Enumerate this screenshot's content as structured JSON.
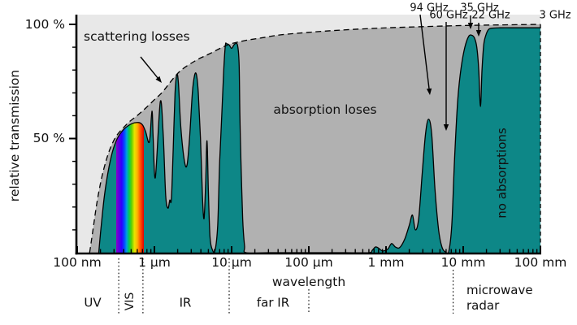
{
  "y_axis": {
    "label": "relative transmission",
    "tick_labels": [
      "100 %",
      "50 %"
    ]
  },
  "x_axis": {
    "title": "wavelength",
    "tick_labels": [
      "100 nm",
      "1 µm",
      "10 µm",
      "100 µm",
      "1 mm",
      "10 mm",
      "100 mm"
    ]
  },
  "annotations": {
    "scattering": "scattering losses",
    "absorption": "absorption loses",
    "no_absorption": "no absorptions",
    "ghz_labels": [
      "94 GHz",
      "60 GHz",
      "35 GHz",
      "22 GHz",
      "3 GHz"
    ]
  },
  "bands": [
    "UV",
    "VIS",
    "IR",
    "far IR",
    "microwave",
    "radar"
  ],
  "colors": {
    "window_fill": "#0d8787",
    "outline": "#000000",
    "scatter_region": "#e8e8e8",
    "absorption_region": "#b1b1b1",
    "spectrum_stops": [
      [
        0,
        "#8a00c8"
      ],
      [
        10,
        "#5500e6"
      ],
      [
        20,
        "#2d00ff"
      ],
      [
        30,
        "#0050ff"
      ],
      [
        38,
        "#00a0e0"
      ],
      [
        46,
        "#00c85a"
      ],
      [
        56,
        "#64d200"
      ],
      [
        66,
        "#e6e600"
      ],
      [
        76,
        "#ffb400"
      ],
      [
        88,
        "#ff5000"
      ],
      [
        100,
        "#e60000"
      ]
    ]
  },
  "chart_data": {
    "type": "area",
    "x_scale": "log",
    "x_unit": "µm",
    "x_range_um": [
      0.1,
      100000
    ],
    "y_label": "relative transmission",
    "y_unit": "%",
    "y_range_pct": [
      0,
      100
    ],
    "grid": false,
    "legend": false,
    "visible_spectrum_um": [
      0.32,
      0.73
    ],
    "band_boundaries_um": [
      0.345,
      0.71,
      9.3,
      100,
      7400
    ],
    "series": [
      {
        "name": "atmospheric transmission windows",
        "style": "filled-teal",
        "points_um_pct": [
          [
            0.19,
            0
          ],
          [
            0.205,
            12
          ],
          [
            0.225,
            25
          ],
          [
            0.25,
            35
          ],
          [
            0.285,
            44
          ],
          [
            0.33,
            50
          ],
          [
            0.4,
            54
          ],
          [
            0.51,
            56.5
          ],
          [
            0.62,
            57
          ],
          [
            0.7,
            56
          ],
          [
            0.77,
            53
          ],
          [
            0.86,
            48.5
          ],
          [
            0.93,
            62
          ],
          [
            0.965,
            50
          ],
          [
            1.03,
            33
          ],
          [
            1.19,
            66
          ],
          [
            1.3,
            52
          ],
          [
            1.4,
            25
          ],
          [
            1.5,
            19.5
          ],
          [
            1.58,
            23
          ],
          [
            1.66,
            23.5
          ],
          [
            1.75,
            45
          ],
          [
            1.85,
            70
          ],
          [
            1.95,
            78
          ],
          [
            2.05,
            74
          ],
          [
            2.2,
            55
          ],
          [
            2.45,
            40
          ],
          [
            2.65,
            38.5
          ],
          [
            2.85,
            50
          ],
          [
            3.1,
            70
          ],
          [
            3.3,
            77.5
          ],
          [
            3.5,
            78
          ],
          [
            3.7,
            70
          ],
          [
            3.95,
            50
          ],
          [
            4.2,
            24
          ],
          [
            4.4,
            15
          ],
          [
            4.6,
            30
          ],
          [
            4.8,
            49
          ],
          [
            5.0,
            27
          ],
          [
            5.25,
            7
          ],
          [
            5.6,
            1.5
          ],
          [
            6.1,
            1
          ],
          [
            6.6,
            12
          ],
          [
            7.0,
            40
          ],
          [
            7.5,
            62
          ],
          [
            7.9,
            80
          ],
          [
            8.3,
            90.8
          ],
          [
            8.6,
            91.5
          ],
          [
            9.3,
            91
          ],
          [
            10.0,
            89.5
          ],
          [
            10.9,
            91.3
          ],
          [
            11.9,
            91
          ],
          [
            12.5,
            83
          ],
          [
            12.8,
            60
          ],
          [
            13.2,
            40
          ],
          [
            13.9,
            15
          ],
          [
            14.7,
            3
          ],
          [
            15.4,
            0
          ],
          [
            30,
            0
          ],
          [
            100,
            0
          ],
          [
            300,
            0
          ],
          [
            600,
            0
          ],
          [
            660,
            1
          ],
          [
            730,
            2.5
          ],
          [
            800,
            2
          ],
          [
            900,
            0.8
          ],
          [
            1050,
            1.5
          ],
          [
            1180,
            4
          ],
          [
            1320,
            2.5
          ],
          [
            1500,
            2.2
          ],
          [
            1750,
            6
          ],
          [
            2000,
            12
          ],
          [
            2200,
            16.5
          ],
          [
            2400,
            10
          ],
          [
            2650,
            15
          ],
          [
            2950,
            35
          ],
          [
            3250,
            52
          ],
          [
            3550,
            58.5
          ],
          [
            3900,
            52
          ],
          [
            4300,
            28
          ],
          [
            4800,
            10
          ],
          [
            5300,
            2.5
          ],
          [
            5900,
            0.3
          ],
          [
            6500,
            0.5
          ],
          [
            7100,
            12
          ],
          [
            7700,
            40
          ],
          [
            8500,
            67
          ],
          [
            9400,
            81
          ],
          [
            10500,
            90
          ],
          [
            11800,
            94.8
          ],
          [
            13000,
            95.2
          ],
          [
            14000,
            94
          ],
          [
            15000,
            90
          ],
          [
            15900,
            80
          ],
          [
            16700,
            64
          ],
          [
            17500,
            80
          ],
          [
            18400,
            91
          ],
          [
            19500,
            95
          ],
          [
            21000,
            97.5
          ],
          [
            23000,
            98.3
          ],
          [
            30000,
            98.5
          ],
          [
            50000,
            98.5
          ],
          [
            80000,
            98.5
          ],
          [
            100000,
            98.5
          ]
        ]
      },
      {
        "name": "scattering loss envelope",
        "style": "dashed-envelope",
        "points_um_pct": [
          [
            0.145,
            0
          ],
          [
            0.16,
            10
          ],
          [
            0.18,
            22
          ],
          [
            0.205,
            32
          ],
          [
            0.235,
            40
          ],
          [
            0.27,
            46
          ],
          [
            0.32,
            51
          ],
          [
            0.39,
            54.5
          ],
          [
            0.48,
            57.5
          ],
          [
            0.62,
            60.5
          ],
          [
            0.78,
            63.5
          ],
          [
            1.0,
            67
          ],
          [
            1.28,
            70.5
          ],
          [
            2.07,
            79
          ],
          [
            3.36,
            84
          ],
          [
            5.1,
            87
          ],
          [
            8.9,
            91
          ],
          [
            14.4,
            92.8
          ],
          [
            23.4,
            94
          ],
          [
            43,
            95.4
          ],
          [
            100,
            96.5
          ],
          [
            263,
            97.5
          ],
          [
            880,
            98.4
          ],
          [
            2960,
            99
          ],
          [
            10000,
            99.5
          ],
          [
            33800,
            99.8
          ],
          [
            100000,
            100
          ]
        ]
      }
    ]
  }
}
